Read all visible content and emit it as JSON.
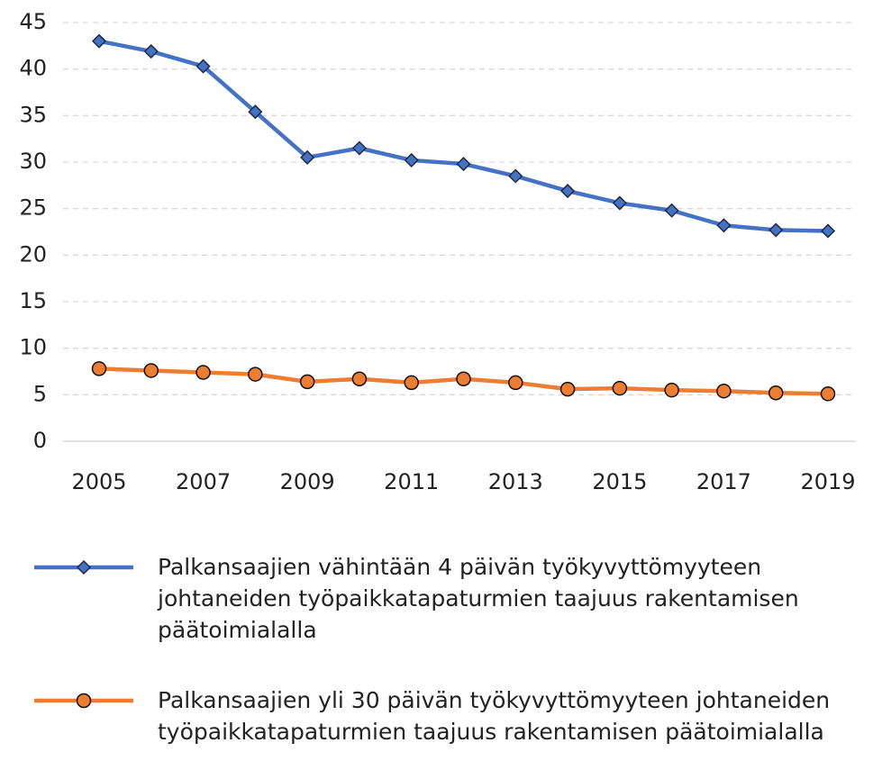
{
  "chart_data": {
    "type": "line",
    "x": [
      2005,
      2006,
      2007,
      2008,
      2009,
      2010,
      2011,
      2012,
      2013,
      2014,
      2015,
      2016,
      2017,
      2018,
      2019
    ],
    "series": [
      {
        "name": "Palkansaajien vähintään 4 päivän työkyvyttömyyteen johtaneiden työpaikkatapaturmien taajuus rakentamisen päätoimialalla",
        "color": "#4472c4",
        "marker": "diamond",
        "values": [
          43.0,
          41.9,
          40.3,
          35.4,
          30.5,
          31.5,
          30.2,
          29.8,
          28.5,
          26.9,
          25.6,
          24.8,
          23.2,
          22.7,
          22.6
        ]
      },
      {
        "name": "Palkansaajien yli 30 päivän työkyvyttömyyteen johtaneiden työpaikkatapaturmien taajuus rakentamisen päätoimialalla",
        "color": "#ed7d31",
        "marker": "circle",
        "values": [
          7.8,
          7.6,
          7.4,
          7.2,
          6.4,
          6.7,
          6.3,
          6.7,
          6.3,
          5.6,
          5.7,
          5.5,
          5.4,
          5.2,
          5.1
        ]
      }
    ],
    "xlim": [
      2005,
      2019
    ],
    "xticks": [
      2005,
      2007,
      2009,
      2011,
      2013,
      2015,
      2017,
      2019
    ],
    "ylim": [
      0,
      45
    ],
    "yticks": [
      0,
      5,
      10,
      15,
      20,
      25,
      30,
      35,
      40,
      45
    ],
    "grid": true,
    "legend": "bottom"
  }
}
